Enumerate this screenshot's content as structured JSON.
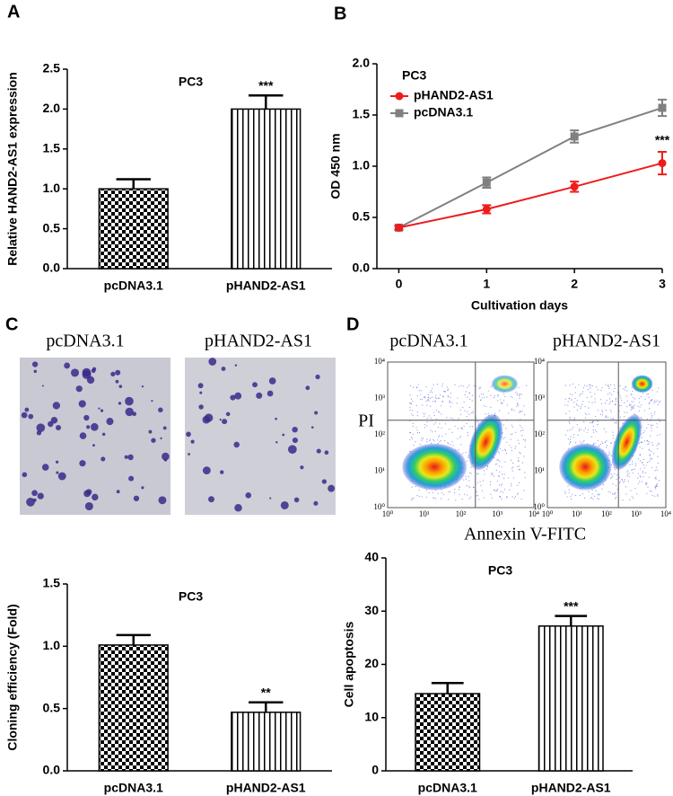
{
  "panel_labels": [
    "A",
    "B",
    "C",
    "D"
  ],
  "colony": {
    "labels": [
      "pcDNA3.1",
      "pHAND2-AS1"
    ]
  },
  "flow": {
    "labels": [
      "pcDNA3.1",
      "pHAND2-AS1"
    ],
    "ticks": [
      "10⁰",
      "10¹",
      "10²",
      "10³",
      "10⁴"
    ],
    "x_label": "Annexin V-FITC",
    "y_label": "PI"
  },
  "chart_data": [
    {
      "type": "bar",
      "title": "PC3",
      "y_label": "Relative HAND2-AS1 expression",
      "categories": [
        "pcDNA3.1",
        "pHAND2-AS1"
      ],
      "values": [
        1.0,
        2.0
      ],
      "errors": [
        0.12,
        0.17
      ],
      "value_annotations": [
        null,
        "***"
      ],
      "patterns": [
        "checker",
        "stripes"
      ],
      "ylim": [
        0,
        2.5
      ],
      "yticks": [
        {
          "value": 0,
          "label": "0.0"
        },
        0.5,
        {
          "value": 1,
          "label": "1.0"
        },
        1.5,
        {
          "value": 2,
          "label": "2.0"
        },
        2.5
      ]
    },
    {
      "type": "line",
      "title": "PC3",
      "x_label": "Cultivation days",
      "y_label": "OD 450 nm",
      "x": [
        0,
        1,
        2,
        3
      ],
      "legend": "upper left",
      "series": [
        {
          "name": "pHAND2-AS1",
          "color": "#ee1c1c",
          "marker": "circle",
          "values": [
            0.4,
            0.58,
            0.8,
            1.03
          ],
          "errors": [
            0.02,
            0.04,
            0.05,
            0.11
          ],
          "value_annotations": [
            null,
            null,
            null,
            "***"
          ]
        },
        {
          "name": "pcDNA3.1",
          "color": "#808080",
          "marker": "square",
          "values": [
            0.4,
            0.84,
            1.29,
            1.57
          ],
          "errors": [
            0.02,
            0.05,
            0.06,
            0.08
          ]
        }
      ],
      "xlim": [
        -0.25,
        3
      ],
      "xticks": [
        0,
        1,
        2,
        3
      ],
      "ylim": [
        0,
        2
      ],
      "yticks": [
        {
          "value": 0,
          "label": "0.0"
        },
        0.5,
        {
          "value": 1,
          "label": "1.0"
        },
        1.5,
        {
          "value": 2,
          "label": "2.0"
        }
      ]
    },
    {
      "type": "bar",
      "title": "PC3",
      "y_label": "Cloning efficiency (Fold)",
      "categories": [
        "pcDNA3.1",
        "pHAND2-AS1"
      ],
      "values": [
        1.01,
        0.47
      ],
      "errors": [
        0.08,
        0.08
      ],
      "value_annotations": [
        null,
        "**"
      ],
      "patterns": [
        "checker",
        "stripes"
      ],
      "ylim": [
        0,
        1.5
      ],
      "yticks": [
        {
          "value": 0,
          "label": "0.0"
        },
        0.5,
        {
          "value": 1,
          "label": "1.0"
        },
        1.5
      ]
    },
    {
      "type": "bar",
      "title": "PC3",
      "y_label": "Cell apoptosis",
      "categories": [
        "pcDNA3.1",
        "pHAND2-AS1"
      ],
      "values": [
        14.5,
        27.2
      ],
      "errors": [
        2.0,
        1.9
      ],
      "value_annotations": [
        null,
        "***"
      ],
      "patterns": [
        "checker",
        "stripes"
      ],
      "ylim": [
        0,
        40
      ],
      "yticks": [
        0,
        10,
        20,
        30,
        40
      ]
    }
  ]
}
